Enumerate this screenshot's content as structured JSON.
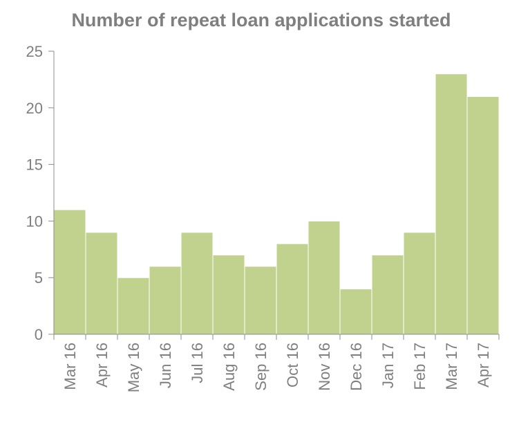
{
  "chart_data": {
    "type": "bar",
    "title": "Number of repeat loan applications started",
    "xlabel": "",
    "ylabel": "",
    "categories": [
      "Mar 16",
      "Apr 16",
      "May 16",
      "Jun 16",
      "Jul 16",
      "Aug 16",
      "Sep 16",
      "Oct 16",
      "Nov 16",
      "Dec 16",
      "Jan 17",
      "Feb 17",
      "Mar 17",
      "Apr 17"
    ],
    "values": [
      11,
      9,
      5,
      6,
      9,
      7,
      6,
      8,
      10,
      4,
      7,
      9,
      23,
      21
    ],
    "ylim": [
      0,
      25
    ],
    "yticks": [
      "0",
      "5",
      "10",
      "15",
      "20",
      "25"
    ],
    "grid": false,
    "legend": "none",
    "bar_color": "#c0d28e",
    "bar_edge_color": "#ffffff",
    "axis_color": "#8c8c8c",
    "text_color": "#7f7f7f"
  }
}
